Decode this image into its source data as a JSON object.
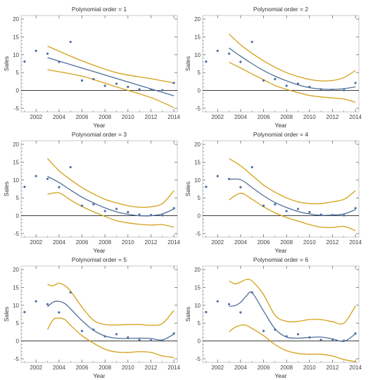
{
  "figure": {
    "background": "#ffffff"
  },
  "style": {
    "point_color": "#4a6fa5",
    "fit_color": "#4f6f9a",
    "band_color": "#d4a017",
    "axis_color": "#555555",
    "zero_line_color": "#222222",
    "frame_color": "#bbbbbb"
  },
  "chart_data": [
    {
      "type": "scatter",
      "title": "Polynomial order = 1",
      "xlabel": "Year",
      "ylabel": "Sales",
      "xlim": [
        2000.7,
        2014.3
      ],
      "ylim": [
        -6,
        21
      ],
      "xticks": [
        2002,
        2004,
        2006,
        2008,
        2010,
        2012,
        2014
      ],
      "yticks": [
        -5,
        0,
        5,
        10,
        15,
        20
      ],
      "points": {
        "x": [
          2001,
          2002,
          2003,
          2004,
          2005,
          2006,
          2007,
          2008,
          2009,
          2010,
          2011,
          2012,
          2013,
          2014
        ],
        "y": [
          8.1,
          11.1,
          10.3,
          8.0,
          13.6,
          2.8,
          3.2,
          1.3,
          1.9,
          1.0,
          0.3,
          0.2,
          0.1,
          2.1
        ]
      },
      "fit": {
        "x": [
          2003,
          2014
        ],
        "y": [
          9.2,
          -1.5
        ]
      },
      "upper_band": {
        "x": [
          2003,
          2006,
          2009,
          2012,
          2014
        ],
        "y": [
          12.4,
          8.3,
          5.0,
          3.3,
          2.1
        ]
      },
      "lower_band": {
        "x": [
          2003,
          2006,
          2009,
          2012,
          2014
        ],
        "y": [
          5.8,
          4.0,
          1.0,
          -2.0,
          -4.8
        ]
      }
    },
    {
      "type": "scatter",
      "title": "Polynomial order = 2",
      "xlabel": "Year",
      "ylabel": "Sales",
      "xlim": [
        2000.7,
        2014.3
      ],
      "ylim": [
        -6,
        21
      ],
      "xticks": [
        2002,
        2004,
        2006,
        2008,
        2010,
        2012,
        2014
      ],
      "yticks": [
        -5,
        0,
        5,
        10,
        15,
        20
      ],
      "points": {
        "x": [
          2001,
          2002,
          2003,
          2004,
          2005,
          2006,
          2007,
          2008,
          2009,
          2010,
          2011,
          2012,
          2013,
          2014
        ],
        "y": [
          8.1,
          11.1,
          10.3,
          8.0,
          13.6,
          2.8,
          3.2,
          1.3,
          1.9,
          1.0,
          0.3,
          0.2,
          0.1,
          2.1
        ]
      },
      "fit": {
        "x": [
          2003,
          2004,
          2005,
          2006,
          2007,
          2008,
          2009,
          2010,
          2011,
          2012,
          2013,
          2014
        ],
        "y": [
          11.9,
          9.6,
          7.5,
          5.6,
          4.0,
          2.7,
          1.6,
          0.8,
          0.4,
          0.3,
          0.5,
          1.0
        ]
      },
      "upper_band": {
        "x": [
          2003,
          2004,
          2005,
          2006,
          2007,
          2008,
          2009,
          2010,
          2011,
          2012,
          2013,
          2014
        ],
        "y": [
          15.8,
          12.8,
          10.4,
          8.3,
          6.5,
          5.0,
          3.9,
          3.1,
          2.7,
          2.8,
          3.6,
          5.6
        ]
      },
      "lower_band": {
        "x": [
          2003,
          2004,
          2005,
          2006,
          2007,
          2008,
          2009,
          2010,
          2011,
          2012,
          2013,
          2014
        ],
        "y": [
          7.9,
          6.3,
          4.6,
          3.0,
          1.4,
          0.3,
          -0.6,
          -1.4,
          -1.8,
          -2.1,
          -2.4,
          -3.3
        ]
      }
    },
    {
      "type": "scatter",
      "title": "Polynomial order = 3",
      "xlabel": "Year",
      "ylabel": "Sales",
      "xlim": [
        2000.7,
        2014.3
      ],
      "ylim": [
        -6,
        21
      ],
      "xticks": [
        2002,
        2004,
        2006,
        2008,
        2010,
        2012,
        2014
      ],
      "yticks": [
        -5,
        0,
        5,
        10,
        15,
        20
      ],
      "points": {
        "x": [
          2001,
          2002,
          2003,
          2004,
          2005,
          2006,
          2007,
          2008,
          2009,
          2010,
          2011,
          2012,
          2013,
          2014
        ],
        "y": [
          8.1,
          11.1,
          10.3,
          8.0,
          13.6,
          2.8,
          3.2,
          1.3,
          1.9,
          1.0,
          0.3,
          0.2,
          0.1,
          2.1
        ]
      },
      "fit": {
        "x": [
          2003,
          2004,
          2005,
          2006,
          2007,
          2008,
          2009,
          2010,
          2011,
          2012,
          2013,
          2014
        ],
        "y": [
          11.0,
          9.3,
          7.2,
          5.2,
          3.6,
          2.2,
          1.1,
          0.4,
          0.0,
          0.0,
          0.5,
          1.9
        ]
      },
      "upper_band": {
        "x": [
          2003,
          2004,
          2005,
          2006,
          2007,
          2008,
          2009,
          2010,
          2011,
          2012,
          2013,
          2014
        ],
        "y": [
          16.0,
          12.6,
          10.1,
          7.9,
          6.1,
          4.6,
          3.6,
          2.8,
          2.4,
          2.5,
          3.4,
          7.0
        ]
      },
      "lower_band": {
        "x": [
          2003,
          2004,
          2005,
          2006,
          2007,
          2008,
          2009,
          2010,
          2011,
          2012,
          2013,
          2014
        ],
        "y": [
          6.0,
          6.4,
          4.4,
          2.6,
          1.1,
          -0.2,
          -1.4,
          -2.0,
          -2.4,
          -2.6,
          -2.5,
          -3.2
        ]
      }
    },
    {
      "type": "scatter",
      "title": "Polynomial order = 4",
      "xlabel": "Year",
      "ylabel": "Sales",
      "xlim": [
        2000.7,
        2014.3
      ],
      "ylim": [
        -6,
        21
      ],
      "xticks": [
        2002,
        2004,
        2006,
        2008,
        2010,
        2012,
        2014
      ],
      "yticks": [
        -5,
        0,
        5,
        10,
        15,
        20
      ],
      "points": {
        "x": [
          2001,
          2002,
          2003,
          2004,
          2005,
          2006,
          2007,
          2008,
          2009,
          2010,
          2011,
          2012,
          2013,
          2014
        ],
        "y": [
          8.1,
          11.1,
          10.3,
          8.0,
          13.6,
          2.8,
          3.2,
          1.3,
          1.9,
          1.0,
          0.3,
          0.2,
          0.1,
          2.1
        ]
      },
      "fit": {
        "x": [
          2003,
          2004,
          2005,
          2006,
          2007,
          2008,
          2009,
          2010,
          2011,
          2012,
          2013,
          2014
        ],
        "y": [
          10.2,
          10.1,
          7.9,
          5.6,
          3.7,
          2.3,
          1.2,
          0.5,
          0.1,
          0.2,
          0.5,
          1.7
        ]
      },
      "upper_band": {
        "x": [
          2003,
          2004,
          2005,
          2006,
          2007,
          2008,
          2009,
          2010,
          2011,
          2012,
          2013,
          2014
        ],
        "y": [
          16.0,
          14.0,
          11.3,
          8.6,
          6.6,
          5.0,
          3.9,
          3.4,
          3.4,
          3.9,
          4.6,
          7.0
        ]
      },
      "lower_band": {
        "x": [
          2003,
          2004,
          2005,
          2006,
          2007,
          2008,
          2009,
          2010,
          2011,
          2012,
          2013,
          2014
        ],
        "y": [
          4.4,
          6.3,
          4.6,
          2.5,
          0.8,
          -0.5,
          -1.5,
          -2.5,
          -3.2,
          -3.3,
          -3.0,
          -4.2
        ]
      }
    },
    {
      "type": "scatter",
      "title": "Polynomial order = 5",
      "xlabel": "Year",
      "ylabel": "Sales",
      "xlim": [
        2000.7,
        2014.3
      ],
      "ylim": [
        -6,
        21
      ],
      "xticks": [
        2002,
        2004,
        2006,
        2008,
        2010,
        2012,
        2014
      ],
      "yticks": [
        -5,
        0,
        5,
        10,
        15,
        20
      ],
      "points": {
        "x": [
          2001,
          2002,
          2003,
          2004,
          2005,
          2006,
          2007,
          2008,
          2009,
          2010,
          2011,
          2012,
          2013,
          2014
        ],
        "y": [
          8.1,
          11.1,
          10.3,
          8.0,
          13.6,
          2.8,
          3.2,
          1.3,
          1.9,
          1.0,
          0.3,
          0.2,
          0.1,
          2.1
        ]
      },
      "fit": {
        "x": [
          2003,
          2003.5,
          2004,
          2004.5,
          2005,
          2006,
          2007,
          2008,
          2009,
          2010,
          2011,
          2012,
          2013,
          2014
        ],
        "y": [
          9.6,
          10.9,
          11.1,
          10.5,
          9.0,
          5.7,
          3.0,
          1.4,
          0.8,
          0.7,
          0.8,
          0.7,
          0.3,
          1.9
        ]
      },
      "upper_band": {
        "x": [
          2003,
          2003.5,
          2004,
          2004.5,
          2005,
          2006,
          2007,
          2008,
          2009,
          2010,
          2011,
          2012,
          2013,
          2014
        ],
        "y": [
          15.8,
          15.5,
          16.2,
          15.5,
          14.0,
          9.5,
          5.8,
          4.6,
          4.5,
          4.6,
          4.6,
          4.4,
          4.9,
          8.6
        ]
      },
      "lower_band": {
        "x": [
          2003,
          2003.5,
          2004,
          2004.5,
          2005,
          2006,
          2007,
          2008,
          2009,
          2010,
          2011,
          2012,
          2013,
          2014
        ],
        "y": [
          3.2,
          6.0,
          6.4,
          6.0,
          4.4,
          1.5,
          -0.6,
          -2.3,
          -3.1,
          -3.2,
          -3.0,
          -3.2,
          -4.2,
          -4.6
        ]
      }
    },
    {
      "type": "scatter",
      "title": "Polynomial order = 6",
      "xlabel": "Year",
      "ylabel": "Sales",
      "xlim": [
        2000.7,
        2014.3
      ],
      "ylim": [
        -6,
        21
      ],
      "xticks": [
        2002,
        2004,
        2006,
        2008,
        2010,
        2012,
        2014
      ],
      "yticks": [
        -5,
        0,
        5,
        10,
        15,
        20
      ],
      "points": {
        "x": [
          2001,
          2002,
          2003,
          2004,
          2005,
          2006,
          2007,
          2008,
          2009,
          2010,
          2011,
          2012,
          2013,
          2014
        ],
        "y": [
          8.1,
          11.1,
          10.3,
          8.0,
          13.6,
          2.8,
          3.2,
          1.3,
          1.9,
          1.0,
          0.3,
          0.2,
          0.1,
          2.1
        ]
      },
      "fit": {
        "x": [
          2003,
          2003.5,
          2004,
          2004.5,
          2005,
          2006,
          2007,
          2008,
          2009,
          2010,
          2011,
          2012,
          2013,
          2014
        ],
        "y": [
          9.7,
          9.9,
          10.8,
          12.6,
          13.5,
          8.4,
          3.4,
          1.1,
          0.8,
          1.0,
          1.1,
          0.6,
          -0.1,
          2.0
        ]
      },
      "upper_band": {
        "x": [
          2003,
          2003.5,
          2004,
          2004.5,
          2005,
          2006,
          2007,
          2008,
          2009,
          2010,
          2011,
          2012,
          2013,
          2014
        ],
        "y": [
          16.8,
          16.0,
          16.5,
          17.2,
          16.8,
          13.0,
          7.2,
          5.5,
          5.5,
          6.0,
          6.0,
          5.4,
          5.0,
          9.8
        ]
      },
      "lower_band": {
        "x": [
          2003,
          2003.5,
          2004,
          2004.5,
          2005,
          2006,
          2007,
          2008,
          2009,
          2010,
          2011,
          2012,
          2013,
          2014
        ],
        "y": [
          2.6,
          3.8,
          4.4,
          4.4,
          3.5,
          1.5,
          -1.0,
          -2.7,
          -3.5,
          -3.7,
          -3.7,
          -4.2,
          -5.2,
          -5.8
        ]
      }
    }
  ]
}
